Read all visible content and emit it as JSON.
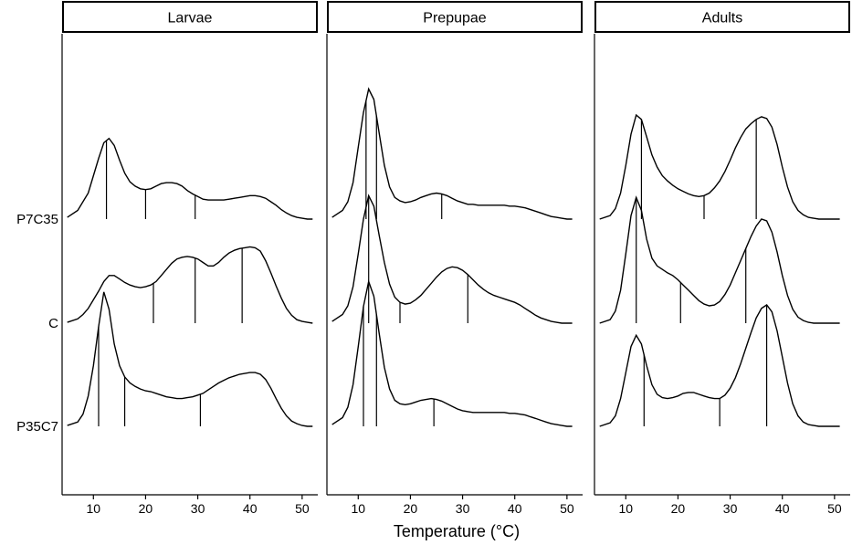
{
  "chart_data": {
    "type": "line",
    "subtype": "ridgeline-density",
    "xlabel": "Temperature (°C)",
    "xlim": [
      4,
      53
    ],
    "x_ticks": [
      10,
      20,
      30,
      40,
      50
    ],
    "y_categories": [
      "P7C35",
      "C",
      "P35C7"
    ],
    "panels": [
      {
        "name": "Larvae",
        "series": [
          {
            "name": "P7C35",
            "x": [
              5,
              7,
              9,
              10,
              11,
              12,
              13,
              14,
              15,
              16,
              17,
              18,
              19,
              20,
              21,
              22,
              23,
              24,
              25,
              26,
              27,
              28,
              29,
              30,
              31,
              32,
              33,
              34,
              35,
              36,
              37,
              38,
              39,
              40,
              41,
              42,
              43,
              44,
              45,
              46,
              47,
              48,
              49,
              50,
              51,
              52
            ],
            "y": [
              0.02,
              0.1,
              0.3,
              0.5,
              0.7,
              0.88,
              0.93,
              0.85,
              0.68,
              0.53,
              0.43,
              0.38,
              0.35,
              0.34,
              0.35,
              0.38,
              0.41,
              0.42,
              0.42,
              0.41,
              0.38,
              0.33,
              0.29,
              0.26,
              0.23,
              0.22,
              0.22,
              0.22,
              0.22,
              0.23,
              0.24,
              0.25,
              0.26,
              0.27,
              0.27,
              0.26,
              0.24,
              0.2,
              0.16,
              0.11,
              0.07,
              0.04,
              0.02,
              0.01,
              0.0,
              0.0
            ],
            "markers": [
              12.5,
              20,
              29.5
            ]
          },
          {
            "name": "C",
            "x": [
              5,
              7,
              8,
              9,
              10,
              11,
              12,
              13,
              14,
              15,
              16,
              17,
              18,
              19,
              20,
              21,
              22,
              23,
              24,
              25,
              26,
              27,
              28,
              29,
              30,
              31,
              32,
              33,
              34,
              35,
              36,
              37,
              38,
              39,
              40,
              41,
              42,
              43,
              44,
              45,
              46,
              47,
              48,
              49,
              50,
              51,
              52
            ],
            "y": [
              0.01,
              0.05,
              0.1,
              0.17,
              0.27,
              0.37,
              0.48,
              0.55,
              0.55,
              0.51,
              0.47,
              0.44,
              0.42,
              0.41,
              0.42,
              0.44,
              0.48,
              0.55,
              0.62,
              0.69,
              0.74,
              0.76,
              0.77,
              0.76,
              0.74,
              0.7,
              0.66,
              0.66,
              0.7,
              0.76,
              0.81,
              0.84,
              0.86,
              0.87,
              0.88,
              0.87,
              0.83,
              0.72,
              0.58,
              0.43,
              0.29,
              0.17,
              0.09,
              0.04,
              0.02,
              0.01,
              0.0
            ],
            "markers": [
              21.5,
              29.5,
              38.5
            ]
          },
          {
            "name": "P35C7",
            "x": [
              5,
              7,
              8,
              9,
              10,
              11,
              12,
              13,
              14,
              15,
              16,
              17,
              18,
              19,
              20,
              21,
              22,
              23,
              24,
              25,
              26,
              27,
              28,
              29,
              30,
              31,
              32,
              33,
              34,
              35,
              36,
              37,
              38,
              39,
              40,
              41,
              42,
              43,
              44,
              45,
              46,
              47,
              48,
              49,
              50,
              51,
              52
            ],
            "y": [
              0.01,
              0.05,
              0.14,
              0.35,
              0.7,
              1.15,
              1.55,
              1.35,
              0.95,
              0.7,
              0.57,
              0.5,
              0.46,
              0.43,
              0.41,
              0.4,
              0.38,
              0.36,
              0.34,
              0.33,
              0.32,
              0.32,
              0.33,
              0.34,
              0.36,
              0.38,
              0.42,
              0.46,
              0.5,
              0.53,
              0.56,
              0.58,
              0.6,
              0.61,
              0.62,
              0.62,
              0.6,
              0.54,
              0.44,
              0.32,
              0.21,
              0.12,
              0.06,
              0.03,
              0.01,
              0.0,
              0.0
            ],
            "markers": [
              11,
              16,
              30.5
            ]
          }
        ]
      },
      {
        "name": "Prepupae",
        "series": [
          {
            "name": "P7C35",
            "x": [
              5,
              7,
              8,
              9,
              10,
              11,
              12,
              13,
              14,
              15,
              16,
              17,
              18,
              19,
              20,
              21,
              22,
              23,
              24,
              25,
              26,
              27,
              28,
              29,
              30,
              31,
              32,
              33,
              34,
              35,
              36,
              37,
              38,
              39,
              40,
              41,
              42,
              43,
              44,
              45,
              46,
              47,
              48,
              49,
              50,
              51
            ],
            "y": [
              0.02,
              0.1,
              0.2,
              0.42,
              0.83,
              1.23,
              1.5,
              1.38,
              1.0,
              0.62,
              0.37,
              0.25,
              0.21,
              0.19,
              0.2,
              0.22,
              0.25,
              0.27,
              0.29,
              0.3,
              0.29,
              0.27,
              0.24,
              0.21,
              0.19,
              0.17,
              0.17,
              0.16,
              0.16,
              0.16,
              0.16,
              0.16,
              0.16,
              0.15,
              0.15,
              0.14,
              0.13,
              0.11,
              0.09,
              0.07,
              0.05,
              0.03,
              0.02,
              0.01,
              0.0,
              0.0
            ],
            "markers": [
              11.5,
              13.5,
              26
            ]
          },
          {
            "name": "C",
            "x": [
              5,
              7,
              8,
              9,
              10,
              11,
              12,
              13,
              14,
              15,
              16,
              17,
              18,
              19,
              20,
              21,
              22,
              23,
              24,
              25,
              26,
              27,
              28,
              29,
              30,
              31,
              32,
              33,
              34,
              35,
              36,
              37,
              38,
              39,
              40,
              41,
              42,
              43,
              44,
              45,
              46,
              47,
              48,
              49,
              50,
              51
            ],
            "y": [
              0.02,
              0.1,
              0.2,
              0.42,
              0.8,
              1.2,
              1.47,
              1.35,
              1.02,
              0.7,
              0.45,
              0.3,
              0.24,
              0.22,
              0.23,
              0.27,
              0.32,
              0.39,
              0.46,
              0.53,
              0.59,
              0.63,
              0.65,
              0.64,
              0.61,
              0.56,
              0.5,
              0.44,
              0.39,
              0.35,
              0.32,
              0.3,
              0.28,
              0.26,
              0.24,
              0.21,
              0.17,
              0.13,
              0.09,
              0.06,
              0.04,
              0.02,
              0.01,
              0.0,
              0.0,
              0.0
            ],
            "markers": [
              12,
              18,
              31
            ]
          },
          {
            "name": "P35C7",
            "x": [
              5,
              7,
              8,
              9,
              10,
              11,
              12,
              13,
              14,
              15,
              16,
              17,
              18,
              19,
              20,
              21,
              22,
              23,
              24,
              25,
              26,
              27,
              28,
              29,
              30,
              31,
              32,
              33,
              34,
              35,
              36,
              37,
              38,
              39,
              40,
              41,
              42,
              43,
              44,
              45,
              46,
              47,
              48,
              49,
              50,
              51
            ],
            "y": [
              0.02,
              0.1,
              0.22,
              0.48,
              0.92,
              1.38,
              1.67,
              1.5,
              1.08,
              0.68,
              0.43,
              0.3,
              0.26,
              0.25,
              0.26,
              0.28,
              0.3,
              0.31,
              0.32,
              0.31,
              0.29,
              0.26,
              0.23,
              0.2,
              0.18,
              0.17,
              0.16,
              0.16,
              0.16,
              0.16,
              0.16,
              0.16,
              0.16,
              0.15,
              0.15,
              0.14,
              0.13,
              0.11,
              0.09,
              0.07,
              0.05,
              0.03,
              0.02,
              0.01,
              0.0,
              0.0
            ],
            "markers": [
              11,
              13.5,
              24.5
            ]
          }
        ]
      },
      {
        "name": "Adults",
        "series": [
          {
            "name": "P7C35",
            "x": [
              5,
              7,
              8,
              9,
              10,
              11,
              12,
              13,
              14,
              15,
              16,
              17,
              18,
              19,
              20,
              21,
              22,
              23,
              24,
              25,
              26,
              27,
              28,
              29,
              30,
              31,
              32,
              33,
              34,
              35,
              36,
              37,
              38,
              39,
              40,
              41,
              42,
              43,
              44,
              45,
              46,
              47,
              48,
              49,
              50,
              51
            ],
            "y": [
              0.0,
              0.04,
              0.12,
              0.3,
              0.62,
              0.98,
              1.2,
              1.15,
              0.95,
              0.74,
              0.6,
              0.5,
              0.44,
              0.39,
              0.35,
              0.32,
              0.29,
              0.27,
              0.26,
              0.27,
              0.3,
              0.36,
              0.44,
              0.55,
              0.68,
              0.82,
              0.94,
              1.04,
              1.1,
              1.15,
              1.18,
              1.16,
              1.06,
              0.86,
              0.6,
              0.37,
              0.2,
              0.1,
              0.05,
              0.02,
              0.01,
              0.0,
              0.0,
              0.0,
              0.0,
              0.0
            ],
            "markers": [
              13,
              25,
              35
            ]
          },
          {
            "name": "C",
            "x": [
              5,
              7,
              8,
              9,
              10,
              11,
              12,
              13,
              14,
              15,
              16,
              17,
              18,
              19,
              20,
              21,
              22,
              23,
              24,
              25,
              26,
              27,
              28,
              29,
              30,
              31,
              32,
              33,
              34,
              35,
              36,
              37,
              38,
              39,
              40,
              41,
              42,
              43,
              44,
              45,
              46,
              47,
              48,
              49,
              50,
              51
            ],
            "y": [
              0.0,
              0.04,
              0.14,
              0.38,
              0.8,
              1.24,
              1.45,
              1.3,
              0.97,
              0.75,
              0.66,
              0.62,
              0.58,
              0.55,
              0.5,
              0.44,
              0.38,
              0.32,
              0.26,
              0.22,
              0.2,
              0.21,
              0.25,
              0.33,
              0.44,
              0.58,
              0.72,
              0.86,
              1.0,
              1.12,
              1.2,
              1.18,
              1.05,
              0.82,
              0.55,
              0.32,
              0.16,
              0.07,
              0.03,
              0.01,
              0.0,
              0.0,
              0.0,
              0.0,
              0.0,
              0.0
            ],
            "markers": [
              12,
              20.5,
              33
            ]
          },
          {
            "name": "P35C7",
            "x": [
              5,
              7,
              8,
              9,
              10,
              11,
              12,
              13,
              14,
              15,
              16,
              17,
              18,
              19,
              20,
              21,
              22,
              23,
              24,
              25,
              26,
              27,
              28,
              29,
              30,
              31,
              32,
              33,
              34,
              35,
              36,
              37,
              38,
              39,
              40,
              41,
              42,
              43,
              44,
              45,
              46,
              47,
              48,
              49,
              50,
              51
            ],
            "y": [
              0.0,
              0.04,
              0.12,
              0.32,
              0.62,
              0.92,
              1.05,
              0.95,
              0.7,
              0.48,
              0.37,
              0.33,
              0.32,
              0.33,
              0.35,
              0.38,
              0.39,
              0.39,
              0.37,
              0.35,
              0.33,
              0.32,
              0.32,
              0.36,
              0.44,
              0.56,
              0.72,
              0.9,
              1.08,
              1.25,
              1.36,
              1.4,
              1.32,
              1.1,
              0.8,
              0.5,
              0.26,
              0.12,
              0.05,
              0.02,
              0.01,
              0.0,
              0.0,
              0.0,
              0.0,
              0.0
            ],
            "markers": [
              13.5,
              28,
              37
            ]
          }
        ]
      }
    ]
  }
}
